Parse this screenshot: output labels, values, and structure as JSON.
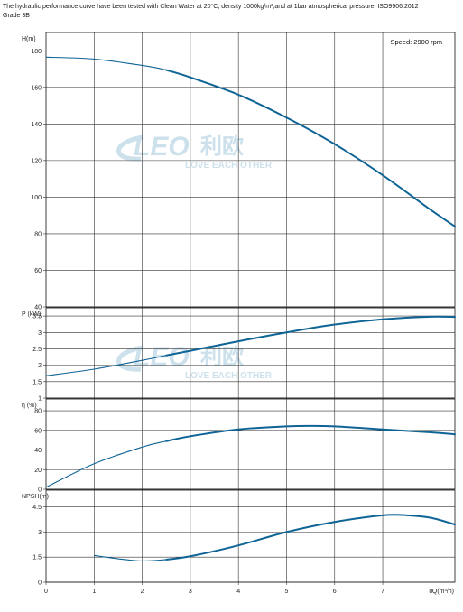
{
  "header": {
    "line1": "The hydraulic performance curve have been tested with Clean Water at 20°C, density 1000kg/m³,and at 1bar atmospherical pressure. ISO9906:2012",
    "line2": "Grade 3B"
  },
  "speed_label": "Speed: 2900 rpm",
  "watermark": {
    "brand": "LEO",
    "cn": "利欧",
    "tagline": "LOVE EACH OTHER"
  },
  "colors": {
    "curve": "#0f6496",
    "grid": "#333333",
    "watermark": "#c4dce9"
  },
  "chart_data": [
    {
      "type": "line",
      "ylabel": "H(m)",
      "ylim": [
        40,
        190
      ],
      "yticks": [
        40,
        60,
        80,
        100,
        120,
        140,
        160,
        180
      ],
      "xlim": [
        0,
        8.5
      ],
      "series": [
        {
          "x": [
            0,
            1,
            2,
            2.5,
            3,
            4,
            5,
            6,
            7,
            8,
            8.5
          ],
          "y": [
            176.5,
            175.5,
            172,
            169.5,
            165.5,
            156,
            143.5,
            129,
            112,
            93,
            84
          ]
        }
      ]
    },
    {
      "type": "line",
      "ylabel": "P (kW)",
      "ylim": [
        1,
        3.75
      ],
      "yticks": [
        1,
        1.5,
        2,
        2.5,
        3,
        3.5
      ],
      "xlim": [
        0,
        8.5
      ],
      "series": [
        {
          "x": [
            0,
            1,
            2,
            2.5,
            3,
            4,
            5,
            6,
            7,
            8,
            8.5
          ],
          "y": [
            1.68,
            1.88,
            2.15,
            2.3,
            2.44,
            2.73,
            3.0,
            3.24,
            3.4,
            3.48,
            3.47
          ]
        }
      ]
    },
    {
      "type": "line",
      "ylabel": "η (%)",
      "ylim": [
        0,
        92
      ],
      "yticks": [
        0,
        20,
        40,
        60,
        80
      ],
      "xlim": [
        0,
        8.5
      ],
      "series": [
        {
          "x": [
            0,
            1,
            2,
            2.5,
            3,
            4,
            5,
            5.5,
            6,
            7,
            8,
            8.5
          ],
          "y": [
            2,
            26,
            43,
            49,
            54,
            61,
            64,
            64.5,
            64,
            61,
            58,
            56
          ]
        }
      ]
    },
    {
      "type": "line",
      "ylabel": "NPSH(m)",
      "ylim": [
        0,
        5.5
      ],
      "yticks": [
        0,
        1.5,
        3,
        4.5
      ],
      "xlim": [
        0,
        8.5
      ],
      "xticks": [
        0,
        1,
        2,
        3,
        4,
        5,
        6,
        7,
        8
      ],
      "xlabel": "Q(m³/h)",
      "series": [
        {
          "x": [
            1,
            1.5,
            2,
            2.5,
            3,
            4,
            5,
            6,
            7,
            7.5,
            8,
            8.5
          ],
          "y": [
            1.6,
            1.4,
            1.27,
            1.35,
            1.55,
            2.2,
            3.0,
            3.6,
            4.0,
            4.0,
            3.85,
            3.45
          ]
        }
      ]
    }
  ]
}
